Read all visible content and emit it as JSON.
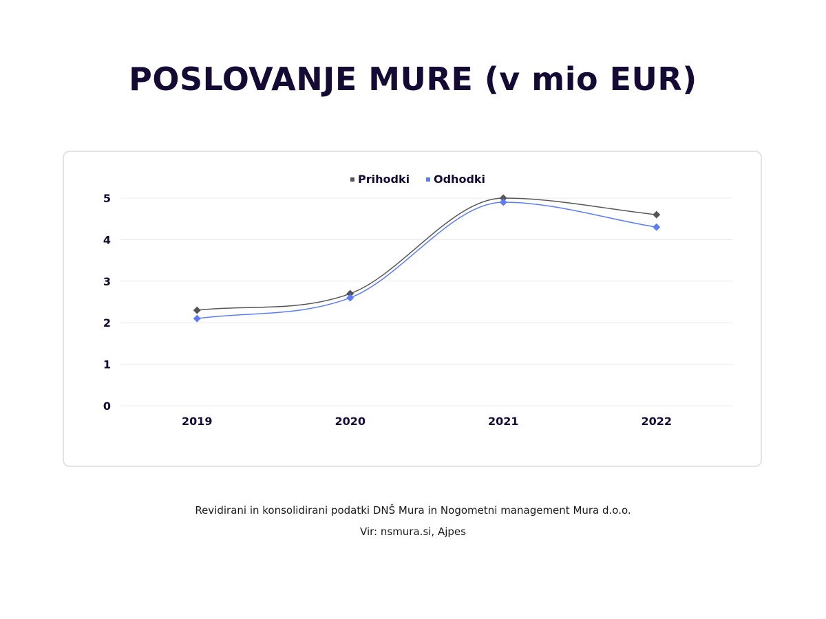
{
  "title": "POSLOVANJE MURE (v mio EUR)",
  "footnote": "Revidirani in konsolidirani podatki DNŠ Mura in Nogometni management Mura d.o.o.",
  "source": "Vir: nsmura.si, Ajpes",
  "colors": {
    "background": "#ffffff",
    "title": "#150a33",
    "prihodki": "#555555",
    "odhodki": "#5b7cf5",
    "grid": "#ebebeb",
    "card_border": "#e3e3e6"
  },
  "chart_data": {
    "type": "line",
    "title": "",
    "xlabel": "",
    "ylabel": "",
    "categories": [
      "2019",
      "2020",
      "2021",
      "2022"
    ],
    "ylim": [
      0,
      5
    ],
    "yticks": [
      "0",
      "1",
      "2",
      "3",
      "4",
      "5"
    ],
    "grid": true,
    "smooth": true,
    "legend_position": "top-center",
    "series": [
      {
        "name": "Prihodki",
        "values": [
          2.3,
          2.7,
          5.0,
          4.6
        ],
        "color": "#555555",
        "marker": "diamond"
      },
      {
        "name": "Odhodki",
        "values": [
          2.1,
          2.6,
          4.9,
          4.3
        ],
        "color": "#5b7cf5",
        "marker": "diamond"
      }
    ]
  }
}
